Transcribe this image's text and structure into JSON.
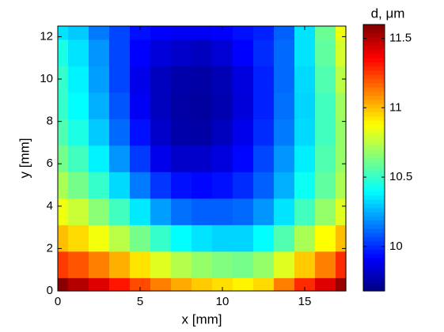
{
  "chart_data": {
    "type": "heatmap",
    "xlabel": "x [mm]",
    "ylabel": "y [mm]",
    "colorbar_label": "d, μm",
    "colormap": "jet",
    "x": [
      0,
      1.25,
      2.5,
      3.75,
      5,
      6.25,
      7.5,
      8.75,
      10,
      11.25,
      12.5,
      13.75,
      15,
      16.25,
      17.5
    ],
    "y": [
      0,
      1.25,
      2.5,
      3.75,
      5,
      6.25,
      7.5,
      8.75,
      10,
      11.25,
      12.5
    ],
    "z": [
      [
        11.58,
        11.5,
        11.42,
        11.32,
        11.22,
        11.12,
        11.04,
        10.98,
        10.94,
        10.9,
        10.95,
        11.12,
        11.28,
        11.42,
        11.55
      ],
      [
        11.25,
        11.2,
        11.12,
        11.03,
        10.93,
        10.82,
        10.74,
        10.68,
        10.64,
        10.62,
        10.68,
        10.82,
        10.98,
        11.12,
        11.28
      ],
      [
        11.0,
        10.95,
        10.86,
        10.75,
        10.62,
        10.5,
        10.4,
        10.35,
        10.32,
        10.32,
        10.4,
        10.55,
        10.72,
        10.88,
        11.0
      ],
      [
        10.85,
        10.78,
        10.66,
        10.52,
        10.36,
        10.22,
        10.13,
        10.1,
        10.1,
        10.12,
        10.2,
        10.35,
        10.52,
        10.68,
        10.82
      ],
      [
        10.72,
        10.62,
        10.5,
        10.33,
        10.15,
        10.02,
        9.95,
        9.93,
        9.95,
        10.0,
        10.1,
        10.25,
        10.42,
        10.58,
        10.72
      ],
      [
        10.62,
        10.52,
        10.38,
        10.2,
        10.03,
        9.88,
        9.82,
        9.82,
        9.86,
        9.93,
        10.05,
        10.2,
        10.37,
        10.55,
        10.68
      ],
      [
        10.55,
        10.45,
        10.3,
        10.12,
        9.95,
        9.82,
        9.76,
        9.75,
        9.8,
        9.88,
        10.0,
        10.15,
        10.33,
        10.52,
        10.68
      ],
      [
        10.5,
        10.4,
        10.25,
        10.08,
        9.9,
        9.8,
        9.75,
        9.74,
        9.77,
        9.85,
        9.98,
        10.13,
        10.32,
        10.52,
        10.7
      ],
      [
        10.5,
        10.38,
        10.22,
        10.05,
        9.88,
        9.8,
        9.76,
        9.75,
        9.78,
        9.86,
        9.98,
        10.12,
        10.33,
        10.55,
        10.75
      ],
      [
        10.45,
        10.35,
        10.2,
        10.05,
        9.92,
        9.85,
        9.82,
        9.8,
        9.84,
        9.92,
        10.0,
        10.12,
        10.35,
        10.58,
        10.8
      ],
      [
        10.35,
        10.3,
        10.15,
        10.05,
        9.95,
        9.92,
        9.9,
        9.9,
        9.92,
        9.95,
        9.98,
        10.1,
        10.35,
        10.6,
        10.85
      ]
    ],
    "xlim": [
      0,
      17.5
    ],
    "xticks": [
      0,
      5,
      10,
      15
    ],
    "ylim": [
      0,
      12.5
    ],
    "yticks": [
      0,
      2,
      4,
      6,
      8,
      10,
      12
    ],
    "clim": [
      9.68,
      11.6
    ],
    "cticks": [
      10,
      10.5,
      11,
      11.5
    ]
  }
}
